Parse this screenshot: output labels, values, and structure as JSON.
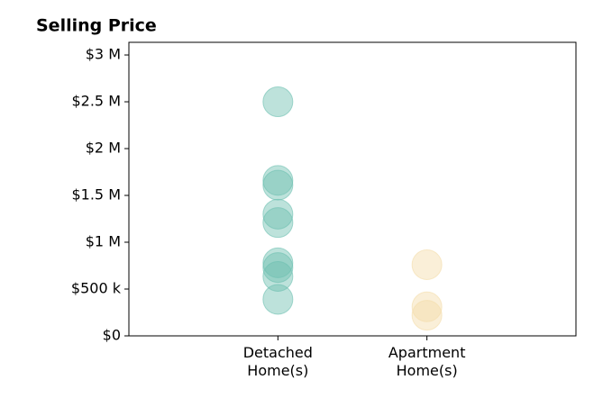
{
  "chart_data": {
    "type": "strip",
    "title": "Selling Price",
    "categories": [
      "Detached\nHome(s)",
      "Apartment\nHome(s)"
    ],
    "values": [
      [
        2500000,
        1660000,
        1610000,
        1300000,
        1210000,
        780000,
        730000,
        635000,
        390000
      ],
      [
        760000,
        310000,
        220000
      ]
    ],
    "colors": [
      "#6cbfb0",
      "#f3dca8"
    ],
    "xlim": [
      -1,
      2
    ],
    "ylim": [
      0,
      3135000
    ],
    "yticks": [
      {
        "value": 0,
        "label": "$0"
      },
      {
        "value": 500000,
        "label": "$500 k"
      },
      {
        "value": 1000000,
        "label": "$1 M"
      },
      {
        "value": 1500000,
        "label": "$1.5 M"
      },
      {
        "value": 2000000,
        "label": "$2 M"
      },
      {
        "value": 2500000,
        "label": "$2.5 M"
      },
      {
        "value": 3000000,
        "label": "$3 M"
      }
    ]
  }
}
